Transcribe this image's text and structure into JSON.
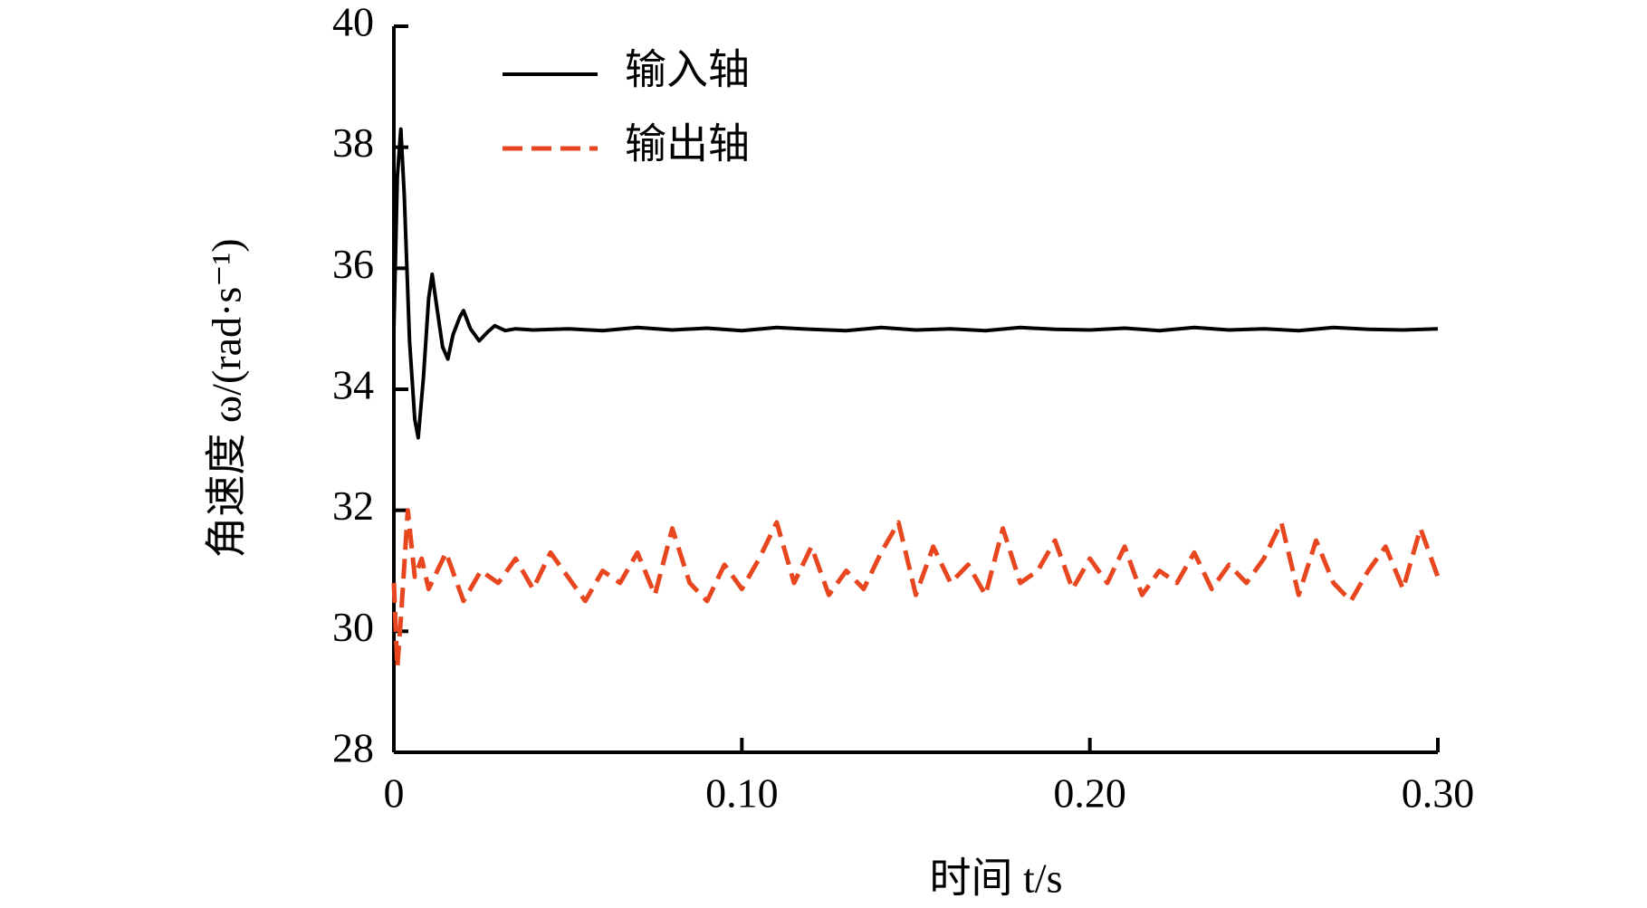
{
  "chart_data": {
    "type": "line",
    "xlabel": "时间 t/s",
    "ylabel": "角速度 ω/(rad·s⁻¹)",
    "xlim": [
      0,
      0.3
    ],
    "ylim": [
      28,
      40
    ],
    "xticks": [
      0,
      {
        "value": 0.1,
        "label": "0.10"
      },
      {
        "value": 0.2,
        "label": "0.20"
      },
      {
        "value": 0.3,
        "label": "0.30"
      }
    ],
    "yticks": [
      28,
      30,
      32,
      34,
      36,
      38,
      40
    ],
    "legend": "upper left",
    "series": [
      {
        "name": "输入轴",
        "color": "#000000",
        "dash": false,
        "x": [
          0,
          0.001,
          0.002,
          0.003,
          0.0045,
          0.006,
          0.007,
          0.0085,
          0.01,
          0.011,
          0.0125,
          0.014,
          0.0155,
          0.017,
          0.019,
          0.02,
          0.022,
          0.0245,
          0.027,
          0.029,
          0.032,
          0.035,
          0.04,
          0.05,
          0.06,
          0.07,
          0.08,
          0.09,
          0.1,
          0.11,
          0.12,
          0.13,
          0.14,
          0.15,
          0.16,
          0.17,
          0.18,
          0.19,
          0.2,
          0.21,
          0.22,
          0.23,
          0.24,
          0.25,
          0.26,
          0.27,
          0.28,
          0.29,
          0.3
        ],
        "values": [
          35,
          37.5,
          38.3,
          37.2,
          34.8,
          33.5,
          33.2,
          34.2,
          35.5,
          35.9,
          35.3,
          34.7,
          34.5,
          34.9,
          35.2,
          35.3,
          35.0,
          34.8,
          34.95,
          35.05,
          34.97,
          35.0,
          34.98,
          35.0,
          34.97,
          35.02,
          34.98,
          35.01,
          34.97,
          35.02,
          34.99,
          34.97,
          35.02,
          34.98,
          35.0,
          34.97,
          35.02,
          34.99,
          34.98,
          35.01,
          34.97,
          35.02,
          34.98,
          35.0,
          34.97,
          35.02,
          34.99,
          34.98,
          35.0
        ]
      },
      {
        "name": "输出轴",
        "color": "#e8461e",
        "dash": true,
        "x": [
          0,
          0.001,
          0.002,
          0.004,
          0.006,
          0.008,
          0.01,
          0.015,
          0.02,
          0.025,
          0.03,
          0.035,
          0.04,
          0.045,
          0.05,
          0.055,
          0.06,
          0.065,
          0.07,
          0.075,
          0.08,
          0.085,
          0.09,
          0.095,
          0.1,
          0.105,
          0.11,
          0.115,
          0.12,
          0.125,
          0.13,
          0.135,
          0.14,
          0.145,
          0.15,
          0.155,
          0.16,
          0.165,
          0.17,
          0.175,
          0.18,
          0.185,
          0.19,
          0.195,
          0.2,
          0.205,
          0.21,
          0.215,
          0.22,
          0.225,
          0.23,
          0.235,
          0.24,
          0.245,
          0.25,
          0.255,
          0.26,
          0.265,
          0.27,
          0.275,
          0.28,
          0.285,
          0.29,
          0.295,
          0.3
        ],
        "values": [
          30.8,
          29.4,
          30.2,
          32.0,
          30.9,
          31.2,
          30.7,
          31.3,
          30.5,
          31.0,
          30.8,
          31.2,
          30.7,
          31.3,
          30.9,
          30.5,
          31.0,
          30.8,
          31.3,
          30.6,
          31.7,
          30.8,
          30.5,
          31.1,
          30.7,
          31.2,
          31.8,
          30.8,
          31.4,
          30.6,
          31.0,
          30.7,
          31.3,
          31.8,
          30.6,
          31.4,
          30.8,
          31.1,
          30.6,
          31.7,
          30.8,
          31.0,
          31.5,
          30.7,
          31.2,
          30.8,
          31.4,
          30.6,
          31.0,
          30.8,
          31.3,
          30.7,
          31.1,
          30.8,
          31.2,
          31.8,
          30.6,
          31.5,
          30.8,
          30.5,
          31.0,
          31.4,
          30.7,
          31.7,
          30.9
        ]
      }
    ]
  }
}
